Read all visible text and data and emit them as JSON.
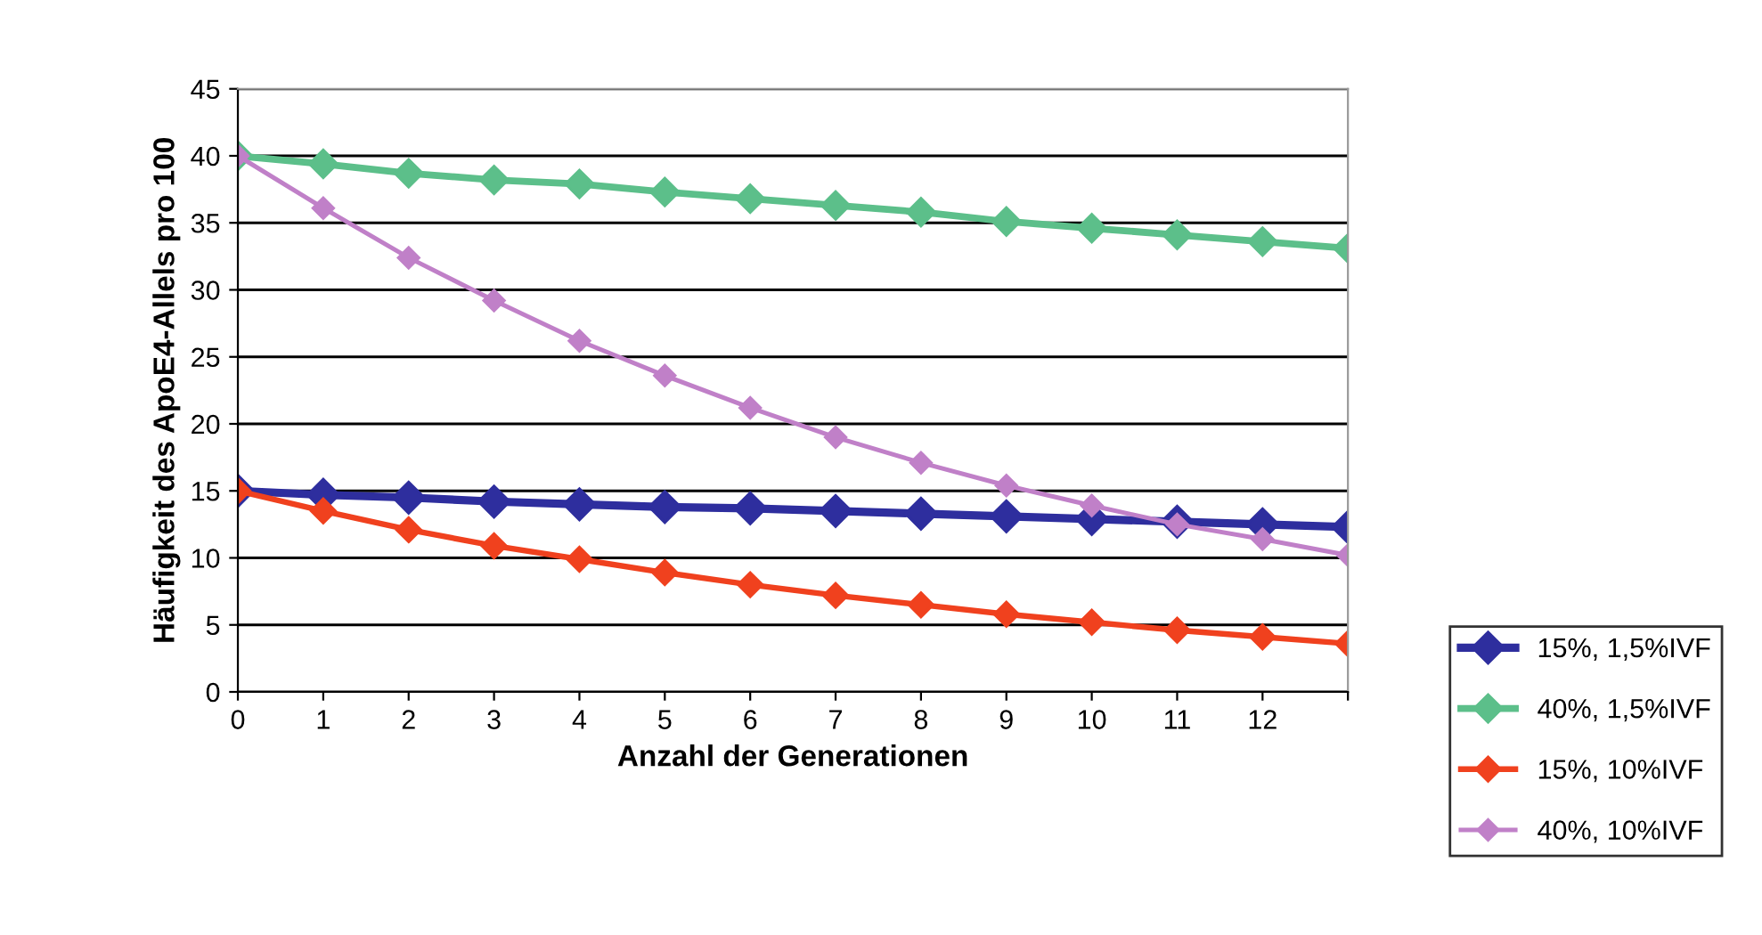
{
  "chart_data": {
    "type": "line",
    "xlabel": "Anzahl der Generationen",
    "ylabel": "Häufigkeit des ApoE4-Allels pro 100",
    "categories": [
      "0",
      "1",
      "2",
      "3",
      "4",
      "5",
      "6",
      "7",
      "8",
      "9",
      "10",
      "11",
      "12",
      null
    ],
    "ylim": [
      0,
      45
    ],
    "yticks": [
      0,
      5,
      10,
      15,
      20,
      25,
      30,
      35,
      40,
      45
    ],
    "grid": "y",
    "legend": "bottom right",
    "marker": "diamond",
    "line_style": "solid",
    "series": [
      {
        "name": "15%, 1,5%IVF",
        "color": "#2e2e9e",
        "values": [
          15,
          14.7,
          14.5,
          14.2,
          14.0,
          13.8,
          13.7,
          13.5,
          13.3,
          13.1,
          12.9,
          12.7,
          12.5,
          12.3
        ]
      },
      {
        "name": "40%, 1,5%IVF",
        "color": "#5cbf8a",
        "values": [
          40,
          39.4,
          38.7,
          38.2,
          37.9,
          37.3,
          36.8,
          36.3,
          35.8,
          35.1,
          34.6,
          34.1,
          33.6,
          33.1
        ]
      },
      {
        "name": "15%, 10%IVF",
        "color": "#f0411e",
        "values": [
          15,
          13.5,
          12.1,
          10.9,
          9.9,
          8.9,
          8.0,
          7.2,
          6.5,
          5.8,
          5.2,
          4.6,
          4.1,
          3.6
        ]
      },
      {
        "name": "40%, 10%IVF",
        "color": "#c080c8",
        "values": [
          40,
          36.1,
          32.4,
          29.2,
          26.2,
          23.6,
          21.2,
          19.0,
          17.1,
          15.4,
          13.9,
          12.5,
          11.4,
          10.2
        ]
      }
    ]
  }
}
